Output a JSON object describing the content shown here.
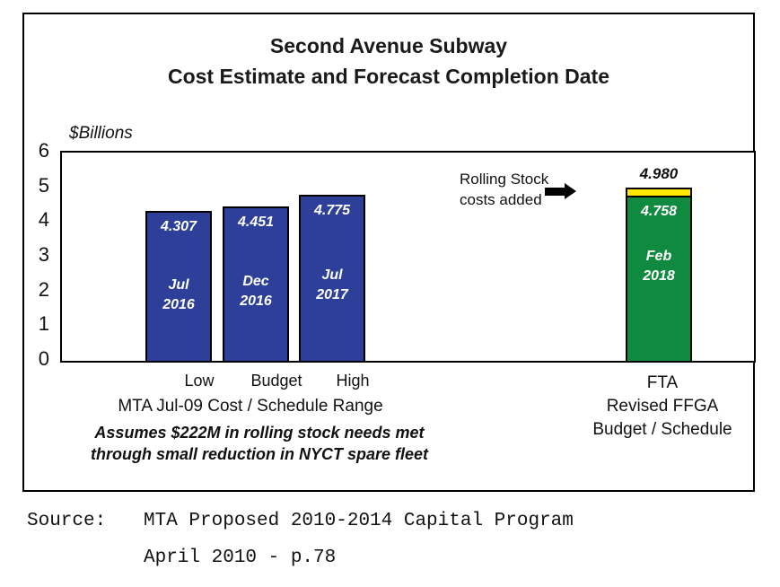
{
  "chart_data": {
    "type": "bar",
    "title": "Second Avenue Subway",
    "subtitle": "Cost Estimate and Forecast Completion Date",
    "unit_label": "$Billions",
    "ylim": [
      0,
      6
    ],
    "yticks": [
      "0",
      "1",
      "2",
      "3",
      "4",
      "5",
      "6"
    ],
    "grid": "off",
    "bars": [
      {
        "category": "Low",
        "value": 4.307,
        "value_label": "4.307",
        "month": "Jul",
        "year": "2016",
        "color": "#2E3F99"
      },
      {
        "category": "Budget",
        "value": 4.451,
        "value_label": "4.451",
        "month": "Dec",
        "year": "2016",
        "color": "#2E3F99"
      },
      {
        "category": "High",
        "value": 4.775,
        "value_label": "4.775",
        "month": "Jul",
        "year": "2017",
        "color": "#2E3F99"
      },
      {
        "category": "FTA",
        "value": 4.758,
        "value_label": "4.758",
        "month": "Feb",
        "year": "2018",
        "color": "#0F8A3F",
        "overlay": {
          "value_to": 4.98,
          "value_label": "4.980",
          "color": "#FFE800",
          "annotation_line1": "Rolling Stock",
          "annotation_line2": "costs added"
        }
      }
    ],
    "x_group_left": {
      "label": "MTA Jul-09 Cost / Schedule Range",
      "note_line1": "Assumes $222M in rolling stock needs met",
      "note_line2": "through small reduction in NYCT spare fleet"
    },
    "x_group_right": {
      "label_line1": "FTA",
      "label_line2": "Revised FFGA",
      "label_line3": "Budget / Schedule"
    }
  },
  "source": {
    "label": "Source:",
    "line1": "MTA Proposed 2010-2014 Capital Program",
    "line2": "April 2010 - p.78"
  }
}
